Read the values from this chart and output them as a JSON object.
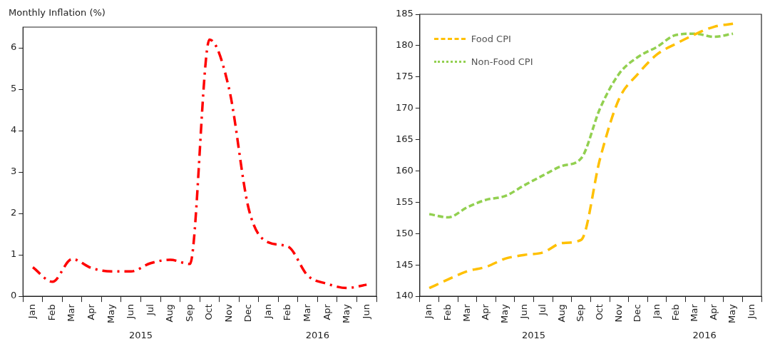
{
  "chart_data": [
    {
      "type": "line",
      "ylabel": "Monthly Inflation (%)",
      "categories": [
        "Jan",
        "Feb",
        "Mar",
        "Apr",
        "May",
        "Jun",
        "Jul",
        "Aug",
        "Sep",
        "Oct",
        "Nov",
        "Dec",
        "Jan",
        "Feb",
        "Mar",
        "Apr",
        "May",
        "Jun"
      ],
      "series": [
        {
          "color": "#ff0000",
          "values": [
            0.7,
            0.35,
            0.9,
            0.68,
            0.6,
            0.6,
            0.8,
            0.88,
            0.78,
            6.2,
            5.0,
            2.1,
            1.3,
            1.2,
            0.5,
            0.3,
            0.2,
            0.28
          ]
        }
      ],
      "ylim": [
        0,
        6.5
      ],
      "yticks": [
        0,
        1,
        2,
        3,
        4,
        5,
        6
      ],
      "line_style": "dashed",
      "annotations": [
        "2015",
        "2016"
      ],
      "legend": false,
      "grid": false
    },
    {
      "type": "line",
      "categories": [
        "Jan",
        "Feb",
        "Mar",
        "Apr",
        "May",
        "Jun",
        "Jul",
        "Aug",
        "Sep",
        "Oct",
        "Nov",
        "Dec",
        "Jan",
        "Feb",
        "Mar",
        "Apr",
        "May",
        "Jun"
      ],
      "series": [
        {
          "name": "Food CPI",
          "color": "#ffc000",
          "values": [
            141.3,
            142.7,
            144.0,
            144.7,
            146.0,
            146.6,
            147.0,
            148.5,
            149.0,
            162.0,
            171.5,
            175.5,
            178.6,
            180.3,
            181.8,
            183.0,
            183.5,
            null
          ]
        },
        {
          "name": "Non-Food CPI",
          "color": "#92d050",
          "values": [
            153.1,
            152.6,
            154.2,
            155.4,
            156.0,
            157.7,
            159.3,
            160.8,
            162.0,
            170.0,
            175.5,
            178.2,
            179.8,
            181.7,
            181.9,
            181.4,
            181.9,
            null
          ]
        }
      ],
      "ylim": [
        140,
        185
      ],
      "yticks": [
        140,
        145,
        150,
        155,
        160,
        165,
        170,
        175,
        180,
        185
      ],
      "line_style": "dashed",
      "annotations": [
        "2015",
        "2016"
      ],
      "legend": "top left",
      "grid": false
    }
  ]
}
